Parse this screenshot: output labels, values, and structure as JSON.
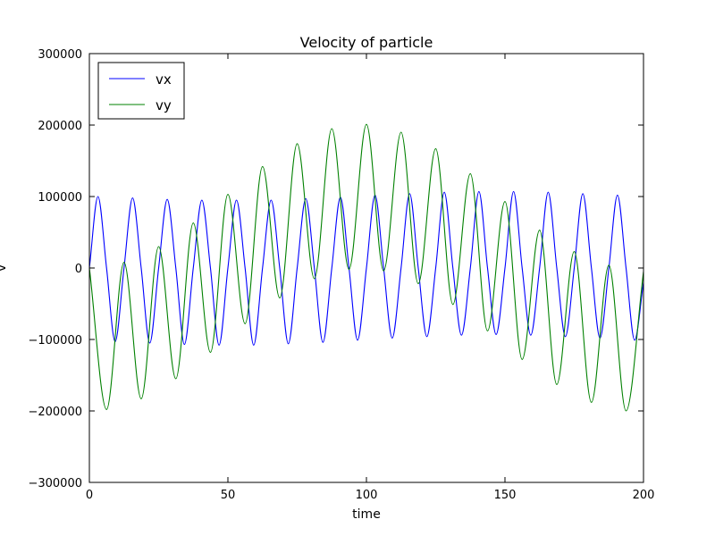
{
  "chart_data": {
    "type": "line",
    "title": "Velocity of particle",
    "xlabel": "time",
    "ylabel": "v",
    "xlim": [
      0,
      200
    ],
    "ylim": [
      -300000,
      300000
    ],
    "xticks": [
      0,
      50,
      100,
      150,
      200
    ],
    "yticks": [
      -300000,
      -200000,
      -100000,
      0,
      100000,
      200000,
      300000
    ],
    "grid": false,
    "legend_position": "top-left",
    "series": [
      {
        "name": "vx",
        "color": "#0000ff",
        "x": [
          0,
          3.1,
          6.2,
          9.3,
          12.5,
          15.6,
          18.7,
          21.8,
          25.0,
          28.1,
          31.2,
          34.3,
          37.5,
          40.6,
          43.7,
          46.8,
          50.0,
          53.1,
          56.2,
          59.3,
          62.5,
          65.6,
          68.7,
          71.8,
          75.0,
          78.1,
          81.2,
          84.3,
          87.5,
          90.6,
          93.7,
          96.8,
          100.0,
          103.1,
          106.2,
          109.3,
          112.5,
          115.6,
          118.7,
          121.8,
          125.0,
          128.1,
          131.2,
          134.3,
          137.5,
          140.6,
          143.7,
          146.8,
          150.0,
          153.1,
          156.2,
          159.3,
          162.5,
          165.6,
          168.7,
          171.8,
          175.0,
          178.1,
          181.2,
          184.3,
          187.5,
          190.6,
          193.7,
          196.8,
          200.0
        ],
        "y": [
          0,
          100000,
          0,
          -103000,
          0,
          98000,
          0,
          -105000,
          0,
          96000,
          0,
          -107000,
          0,
          95000,
          0,
          -108000,
          0,
          95000,
          0,
          -108000,
          0,
          95000,
          0,
          -106000,
          0,
          97000,
          0,
          -104000,
          0,
          99000,
          0,
          -101000,
          0,
          102000,
          0,
          -98000,
          0,
          104000,
          0,
          -96000,
          0,
          106000,
          0,
          -94000,
          0,
          107000,
          0,
          -93000,
          0,
          107000,
          0,
          -94000,
          0,
          106000,
          0,
          -96000,
          0,
          104000,
          0,
          -98000,
          0,
          102000,
          0,
          -101000,
          -20000
        ]
      },
      {
        "name": "vy",
        "color": "#008000",
        "x": [
          0,
          6.2,
          12.5,
          18.7,
          25.0,
          31.2,
          37.5,
          43.7,
          50.0,
          56.2,
          62.5,
          68.7,
          75.0,
          81.2,
          87.5,
          93.7,
          100.0,
          106.2,
          112.5,
          118.7,
          125.0,
          131.2,
          137.5,
          143.7,
          150.0,
          156.2,
          162.5,
          168.7,
          175.0,
          181.2,
          187.5,
          193.7,
          200.0
        ],
        "y": [
          0,
          -198000,
          8000,
          -183000,
          30000,
          -155000,
          63000,
          -118000,
          103000,
          -78000,
          142000,
          -42000,
          174000,
          -15000,
          195000,
          -2000,
          201000,
          -4000,
          190000,
          -22000,
          167000,
          -51000,
          132000,
          -88000,
          93000,
          -128000,
          53000,
          -163000,
          23000,
          -188000,
          4000,
          -200000,
          -5000
        ]
      }
    ]
  }
}
